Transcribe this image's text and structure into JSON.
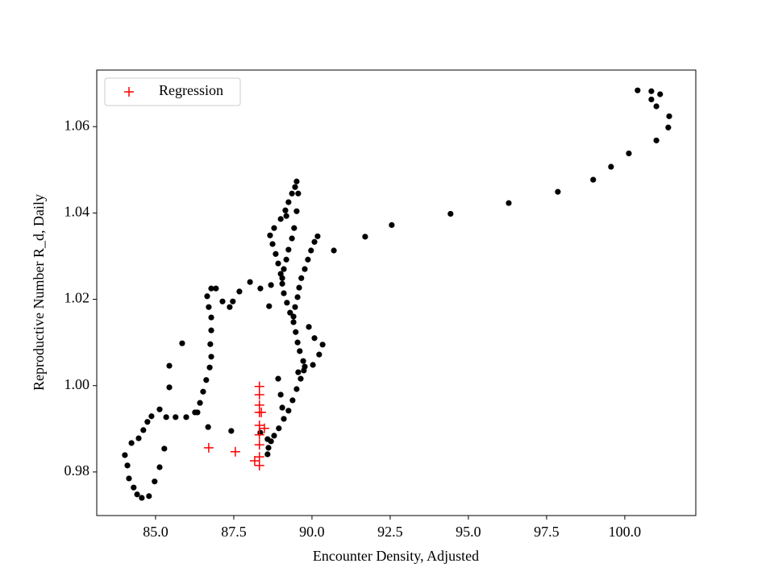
{
  "chart_data": {
    "type": "scatter",
    "xlabel": "Encounter Density, Adjusted",
    "ylabel": "Reproductive Number R_d, Daily",
    "xlim": [
      83.12,
      102.27
    ],
    "ylim": [
      0.9699,
      1.0731
    ],
    "xticks": [
      {
        "value": 85,
        "label": "85.0"
      },
      87.5,
      {
        "value": 90,
        "label": "90.0"
      },
      92.5,
      {
        "value": 95,
        "label": "95.0"
      },
      97.5,
      {
        "value": 100,
        "label": "100.0"
      }
    ],
    "yticks": [
      0.98,
      {
        "value": 1,
        "label": "1.00"
      },
      1.02,
      1.04,
      1.06
    ],
    "legend": "upper left",
    "series": [
      {
        "color": "#000000",
        "marker": "dot",
        "x": [
          100.41,
          100.85,
          101.13,
          100.85,
          101.01,
          101.42,
          101.39,
          101.01,
          100.13,
          99.56,
          98.99,
          97.86,
          96.29,
          94.43,
          92.55,
          91.7,
          90.7,
          89.51,
          89.46,
          89.36,
          89.25,
          89.15,
          89.0,
          88.79,
          88.66,
          88.74,
          88.84,
          88.92,
          89.0,
          89.05,
          89.1,
          89.2,
          89.3,
          89.41,
          89.48,
          89.54,
          89.61,
          89.72,
          89.74,
          89.64,
          89.51,
          89.38,
          89.25,
          89.1,
          88.94,
          88.79,
          88.69,
          88.61,
          88.58,
          89.56,
          89.51,
          89.43,
          89.36,
          89.25,
          89.18,
          89.1,
          89.05,
          89.18,
          90.18,
          90.08,
          89.97,
          89.87,
          89.77,
          89.66,
          89.59,
          89.54,
          89.46,
          89.41,
          89.9,
          90.08,
          90.34,
          90.23,
          90.03,
          89.77,
          89.56,
          88.92,
          89.0,
          89.05,
          88.58,
          88.35,
          88.02,
          87.68,
          87.47,
          87.37,
          87.14,
          86.93,
          86.78,
          86.65,
          86.7,
          86.78,
          86.78,
          86.75,
          86.78,
          86.73,
          86.62,
          86.52,
          86.42,
          86.26,
          85.98,
          85.64,
          85.34,
          85.13,
          84.87,
          84.74,
          84.61,
          84.46,
          84.23,
          84.02,
          84.1,
          84.15,
          84.3,
          84.41,
          84.56,
          84.79,
          84.97,
          85.13,
          85.28,
          85.44,
          85.44,
          85.85,
          86.68,
          87.42,
          88.63,
          88.35,
          88.69,
          86.34
        ],
        "y": [
          1.0684,
          1.0682,
          1.0675,
          1.0663,
          1.0647,
          1.0624,
          1.0598,
          1.0568,
          1.0538,
          1.0507,
          1.0477,
          1.0449,
          1.0423,
          1.0398,
          1.0372,
          1.0345,
          1.0313,
          1.0473,
          1.046,
          1.0445,
          1.0425,
          1.0406,
          1.0386,
          1.0365,
          1.0348,
          1.0328,
          1.0305,
          1.0283,
          1.0259,
          1.0236,
          1.0214,
          1.0192,
          1.0169,
          1.0147,
          1.0124,
          1.01,
          1.008,
          1.0057,
          1.0035,
          1.0016,
          0.9992,
          0.9966,
          0.9942,
          0.9923,
          0.9901,
          0.9884,
          0.9871,
          0.9856,
          0.9841,
          1.0445,
          1.0404,
          1.0365,
          1.0341,
          1.0315,
          1.0292,
          1.027,
          1.0249,
          1.0393,
          1.0346,
          1.0333,
          1.0313,
          1.0292,
          1.027,
          1.0249,
          1.0227,
          1.0205,
          1.0182,
          1.016,
          1.0136,
          1.011,
          1.0095,
          1.0072,
          1.0048,
          1.0044,
          1.0031,
          1.0016,
          0.9979,
          0.9949,
          0.9876,
          0.9891,
          1.024,
          1.0218,
          1.0195,
          1.0182,
          1.0195,
          1.0225,
          1.0225,
          1.0207,
          1.0182,
          1.0158,
          1.0128,
          1.0096,
          1.0067,
          1.0042,
          1.0013,
          0.9986,
          0.996,
          0.9938,
          0.9927,
          0.9927,
          0.9927,
          0.9945,
          0.9929,
          0.9916,
          0.9897,
          0.9878,
          0.9867,
          0.9839,
          0.9815,
          0.9785,
          0.9764,
          0.9748,
          0.974,
          0.9744,
          0.9778,
          0.9811,
          0.9854,
          0.9996,
          1.0046,
          1.0098,
          0.9904,
          0.9895,
          1.0184,
          1.0225,
          1.0233,
          0.9938
        ]
      },
      {
        "name": "Regression",
        "color": "#ff0000",
        "marker": "plus",
        "x": [
          86.7,
          87.55,
          88.17,
          88.32,
          88.32,
          88.32,
          88.32,
          88.32,
          88.32,
          88.32,
          88.32,
          88.32,
          88.48,
          88.38
        ],
        "y": [
          0.9856,
          0.9847,
          0.9826,
          0.9815,
          0.9835,
          0.9863,
          0.9886,
          0.9908,
          0.9938,
          0.9955,
          0.9979,
          0.9998,
          0.9901,
          0.9938
        ]
      }
    ]
  }
}
